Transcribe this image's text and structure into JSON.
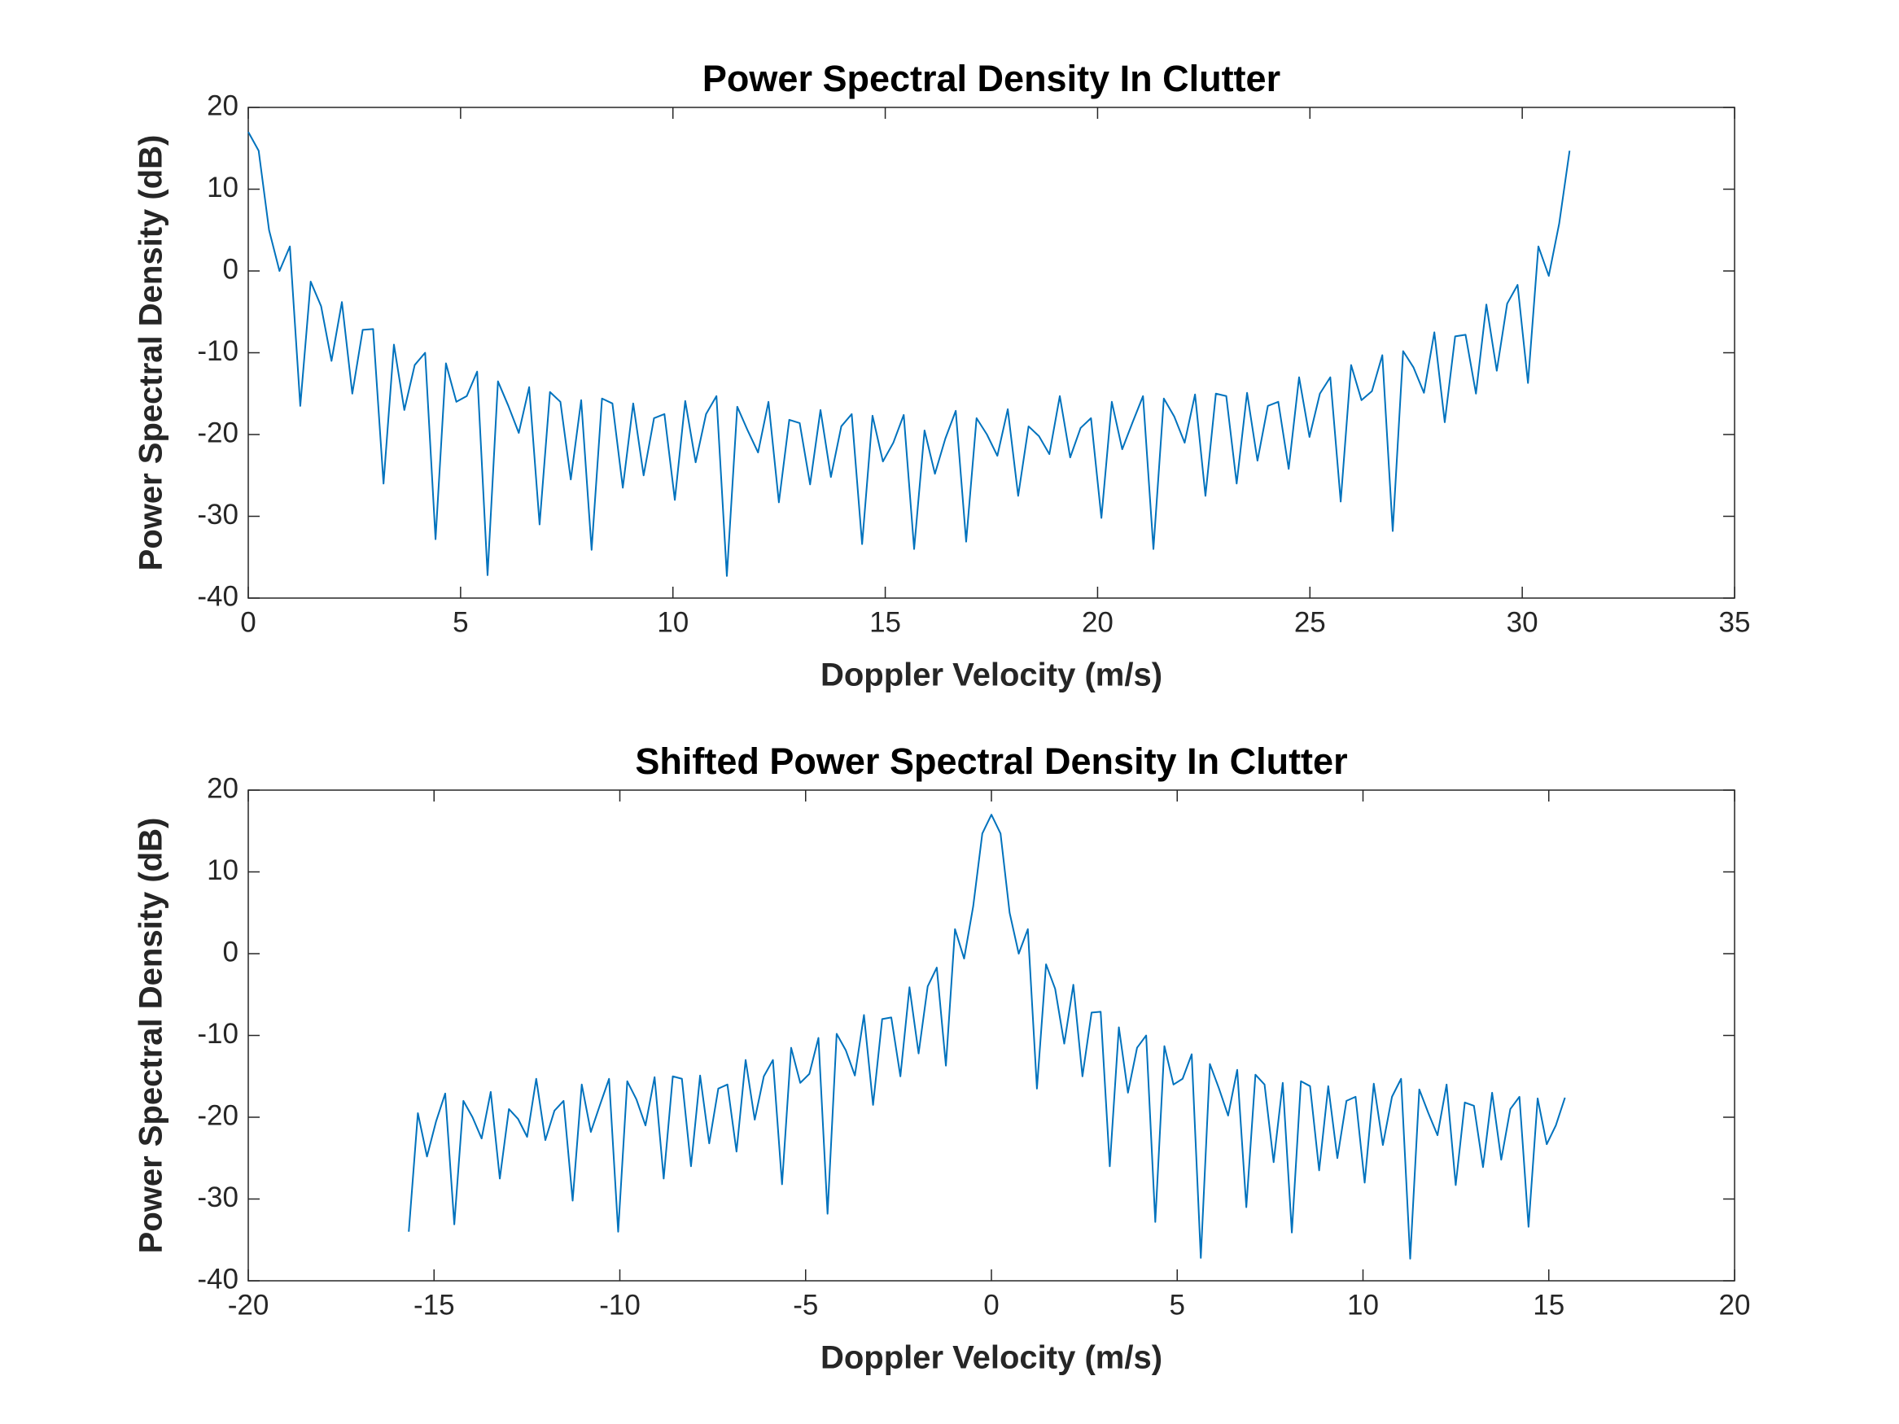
{
  "chart_data": [
    {
      "type": "line",
      "title": "Power Spectral Density In Clutter",
      "xlabel": "Doppler Velocity (m/s)",
      "ylabel": "Power Spectral Density (dB)",
      "color": "#0072bd",
      "xlim": [
        0,
        35
      ],
      "ylim": [
        -40,
        20
      ],
      "xticks": [
        0,
        5,
        10,
        15,
        20,
        25,
        30,
        35
      ],
      "yticks": [
        -40,
        -30,
        -20,
        -10,
        0,
        10,
        20
      ],
      "x": [
        0,
        0.245,
        0.49,
        0.735,
        0.98,
        1.225,
        1.47,
        1.715,
        1.96,
        2.205,
        2.45,
        2.695,
        2.94,
        3.185,
        3.43,
        3.675,
        3.92,
        4.165,
        4.41,
        4.655,
        4.9,
        5.145,
        5.39,
        5.635,
        5.88,
        6.125,
        6.37,
        6.615,
        6.86,
        7.105,
        7.35,
        7.595,
        7.84,
        8.085,
        8.33,
        8.575,
        8.82,
        9.065,
        9.31,
        9.555,
        9.8,
        10.045,
        10.29,
        10.535,
        10.78,
        11.025,
        11.27,
        11.515,
        11.76,
        12.005,
        12.25,
        12.495,
        12.74,
        12.985,
        13.23,
        13.475,
        13.72,
        13.965,
        14.21,
        14.455,
        14.7,
        14.945,
        15.19,
        15.435,
        15.68,
        15.925,
        16.17,
        16.415,
        16.66,
        16.905,
        17.15,
        17.395,
        17.64,
        17.885,
        18.13,
        18.375,
        18.62,
        18.865,
        19.11,
        19.355,
        19.6,
        19.845,
        20.09,
        20.335,
        20.58,
        20.825,
        21.07,
        21.315,
        21.56,
        21.805,
        22.05,
        22.295,
        22.54,
        22.785,
        23.03,
        23.275,
        23.52,
        23.765,
        24.01,
        24.255,
        24.5,
        24.745,
        24.99,
        25.235,
        25.48,
        25.725,
        25.97,
        26.215,
        26.46,
        26.705,
        26.95,
        27.195,
        27.44,
        27.685,
        27.93,
        28.175,
        28.42,
        28.665,
        28.91,
        29.155,
        29.4,
        29.645,
        29.89,
        30.135,
        30.38,
        30.625,
        30.87,
        31.115
      ],
      "values": [
        17,
        14.7,
        5,
        0,
        3,
        -16.5,
        -1.3,
        -4.3,
        -11,
        -3.8,
        -15,
        -7.2,
        -7.1,
        -26,
        -9,
        -17,
        -11.5,
        -10,
        -32.8,
        -11.3,
        -16,
        -15.3,
        -12.3,
        -37.2,
        -13.5,
        -16.5,
        -19.8,
        -14.2,
        -31,
        -14.8,
        -16,
        -25.5,
        -15.8,
        -34.1,
        -15.6,
        -16.2,
        -26.5,
        -16.2,
        -25,
        -18,
        -17.5,
        -28,
        -15.9,
        -23.4,
        -17.5,
        -15.3,
        -37.3,
        -16.6,
        -19.5,
        -22.2,
        -16,
        -28.3,
        -18.2,
        -18.6,
        -26.1,
        -17,
        -25.2,
        -19,
        -17.5,
        -33.4,
        -17.7,
        -23.3,
        -21,
        -17.6,
        -34,
        -19.5,
        -24.8,
        -20.5,
        -17.1,
        -33.1,
        -18,
        -20,
        -22.6,
        -16.9,
        -27.5,
        -19,
        -20.2,
        -22.4,
        -15.3,
        -22.8,
        -19.2,
        -18,
        -30.2,
        -16,
        -21.8,
        -18.5,
        -15.3,
        -34,
        -15.6,
        -17.8,
        -21,
        -15.1,
        -27.5,
        -15,
        -15.3,
        -26,
        -14.9,
        -23.2,
        -16.5,
        -16,
        -24.2,
        -13,
        -20.3,
        -15,
        -13,
        -28.2,
        -11.5,
        -15.8,
        -14.7,
        -10.3,
        -31.8,
        -9.8,
        -11.8,
        -14.9,
        -7.5,
        -18.5,
        -8,
        -7.8,
        -15,
        -4.1,
        -12.2,
        -4,
        -1.7,
        -13.7,
        3,
        -0.6,
        5.8,
        14.7
      ]
    },
    {
      "type": "line",
      "title": "Shifted Power Spectral Density In Clutter",
      "xlabel": "Doppler Velocity (m/s)",
      "ylabel": "Power Spectral Density (dB)",
      "color": "#0072bd",
      "xlim": [
        -20,
        20
      ],
      "ylim": [
        -40,
        20
      ],
      "xticks": [
        -20,
        -15,
        -10,
        -5,
        0,
        5,
        10,
        15,
        20
      ],
      "yticks": [
        -40,
        -30,
        -20,
        -10,
        0,
        10,
        20
      ],
      "x": [
        -15.68,
        -15.435,
        -15.19,
        -14.945,
        -14.7,
        -14.455,
        -14.21,
        -13.965,
        -13.72,
        -13.475,
        -13.23,
        -12.985,
        -12.74,
        -12.495,
        -12.25,
        -12.005,
        -11.76,
        -11.515,
        -11.27,
        -11.025,
        -10.78,
        -10.535,
        -10.29,
        -10.045,
        -9.8,
        -9.555,
        -9.31,
        -9.065,
        -8.82,
        -8.575,
        -8.33,
        -8.085,
        -7.84,
        -7.595,
        -7.35,
        -7.105,
        -6.86,
        -6.615,
        -6.37,
        -6.125,
        -5.88,
        -5.635,
        -5.39,
        -5.145,
        -4.9,
        -4.655,
        -4.41,
        -4.165,
        -3.92,
        -3.675,
        -3.43,
        -3.185,
        -2.94,
        -2.695,
        -2.45,
        -2.205,
        -1.96,
        -1.715,
        -1.47,
        -1.225,
        -0.98,
        -0.735,
        -0.49,
        -0.245,
        0,
        0.245,
        0.49,
        0.735,
        0.98,
        1.225,
        1.47,
        1.715,
        1.96,
        2.205,
        2.45,
        2.695,
        2.94,
        3.185,
        3.43,
        3.675,
        3.92,
        4.165,
        4.41,
        4.655,
        4.9,
        5.145,
        5.39,
        5.635,
        5.88,
        6.125,
        6.37,
        6.615,
        6.86,
        7.105,
        7.35,
        7.595,
        7.84,
        8.085,
        8.33,
        8.575,
        8.82,
        9.065,
        9.31,
        9.555,
        9.8,
        10.045,
        10.29,
        10.535,
        10.78,
        11.025,
        11.27,
        11.515,
        11.76,
        12.005,
        12.25,
        12.495,
        12.74,
        12.985,
        13.23,
        13.475,
        13.72,
        13.965,
        14.21,
        14.455,
        14.7,
        14.945,
        15.19,
        15.435
      ],
      "values": [
        -34,
        -19.5,
        -24.8,
        -20.5,
        -17.1,
        -33.1,
        -18,
        -20,
        -22.6,
        -16.9,
        -27.5,
        -19,
        -20.2,
        -22.4,
        -15.3,
        -22.8,
        -19.2,
        -18,
        -30.2,
        -16,
        -21.8,
        -18.5,
        -15.3,
        -34,
        -15.6,
        -17.8,
        -21,
        -15.1,
        -27.5,
        -15,
        -15.3,
        -26,
        -14.9,
        -23.2,
        -16.5,
        -16,
        -24.2,
        -13,
        -20.3,
        -15,
        -13,
        -28.2,
        -11.5,
        -15.8,
        -14.7,
        -10.3,
        -31.8,
        -9.8,
        -11.8,
        -14.9,
        -7.5,
        -18.5,
        -8,
        -7.8,
        -15,
        -4.1,
        -12.2,
        -4,
        -1.7,
        -13.7,
        3,
        -0.6,
        5.8,
        14.7,
        17,
        14.7,
        5,
        0,
        3,
        -16.5,
        -1.3,
        -4.3,
        -11,
        -3.8,
        -15,
        -7.2,
        -7.1,
        -26,
        -9,
        -17,
        -11.5,
        -10,
        -32.8,
        -11.3,
        -16,
        -15.3,
        -12.3,
        -37.2,
        -13.5,
        -16.5,
        -19.8,
        -14.2,
        -31,
        -14.8,
        -16,
        -25.5,
        -15.8,
        -34.1,
        -15.6,
        -16.2,
        -26.5,
        -16.2,
        -25,
        -18,
        -17.5,
        -28,
        -15.9,
        -23.4,
        -17.5,
        -15.3,
        -37.3,
        -16.6,
        -19.5,
        -22.2,
        -16,
        -28.3,
        -18.2,
        -18.6,
        -26.1,
        -17,
        -25.2,
        -19,
        -17.5,
        -33.4,
        -17.7,
        -23.3,
        -21,
        -17.6
      ]
    }
  ]
}
